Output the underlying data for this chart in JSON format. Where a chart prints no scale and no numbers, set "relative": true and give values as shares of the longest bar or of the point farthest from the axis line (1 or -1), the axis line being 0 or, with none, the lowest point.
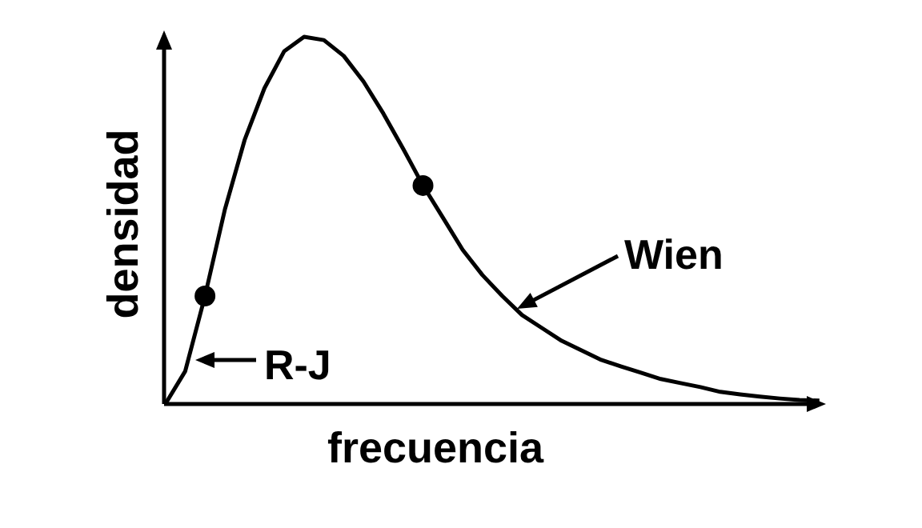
{
  "chart_data": {
    "type": "line",
    "relative": true,
    "xlabel": "frecuencia",
    "ylabel": "densidad",
    "categories": [
      null,
      null,
      null,
      null,
      null,
      null,
      null,
      null,
      null,
      null,
      null,
      null,
      null,
      null,
      null,
      null,
      null,
      null,
      null,
      null,
      null,
      null,
      null,
      null,
      null,
      null,
      null,
      null,
      null,
      null,
      null,
      null,
      null,
      null
    ],
    "series": [
      {
        "type": "line",
        "color": "#000000",
        "marker": "none",
        "values": [
          0,
          0.089,
          0.294,
          0.529,
          0.719,
          0.86,
          0.961,
          1,
          0.991,
          0.948,
          0.878,
          0.791,
          0.695,
          0.595,
          0.508,
          0.42,
          0.351,
          0.294,
          0.242,
          0.207,
          0.172,
          0.146,
          0.12,
          0.102,
          0.085,
          0.068,
          0.057,
          0.046,
          0.033,
          0.026,
          0.02,
          0.015,
          0.011,
          0.009
        ]
      },
      {
        "color": "#000000",
        "marker": "circle",
        "values": [
          null,
          null,
          0.294,
          null,
          null,
          null,
          null,
          null,
          null,
          null,
          null,
          null,
          null,
          0.595,
          null,
          null,
          null,
          null,
          null,
          null,
          null,
          null,
          null,
          null,
          null,
          null,
          null,
          null,
          null,
          null,
          null,
          null,
          null,
          null
        ]
      }
    ],
    "annotations": [
      "R-J",
      "Wien"
    ]
  }
}
